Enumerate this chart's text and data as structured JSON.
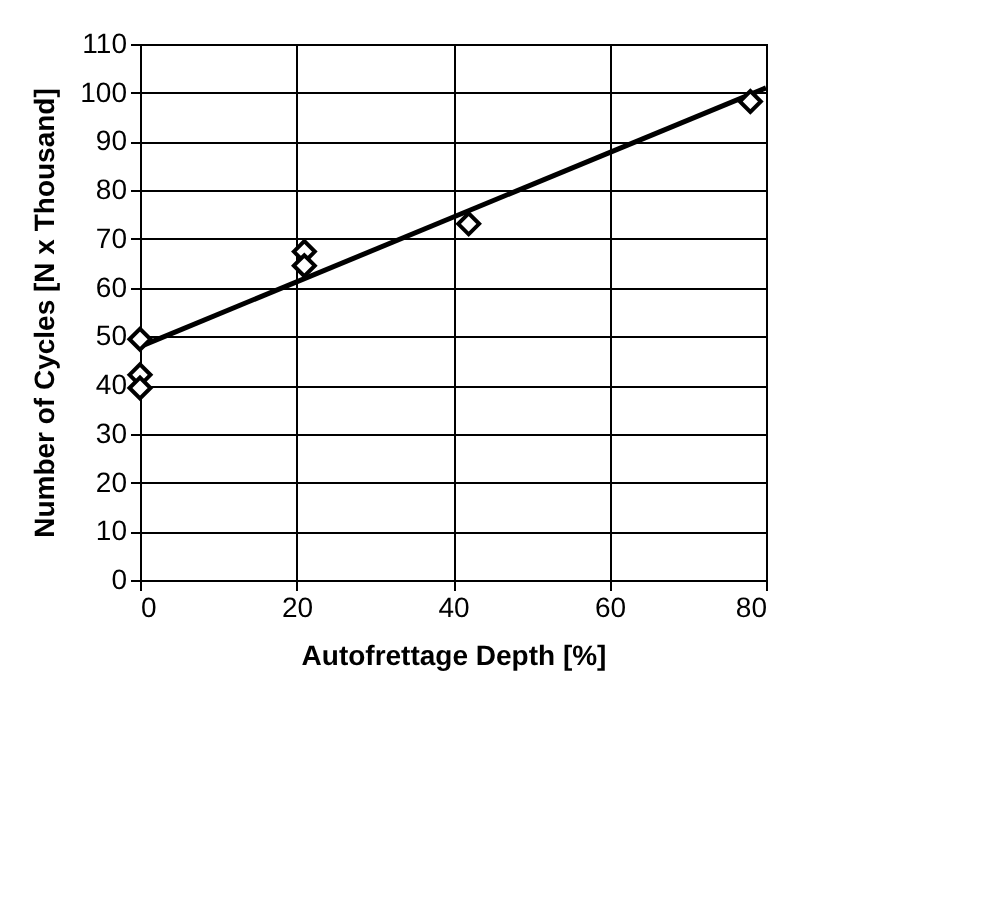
{
  "chart_data": {
    "type": "scatter",
    "xlabel": "Autofrettage Depth [%]",
    "ylabel": "Number of Cycles [N x Thousand]",
    "xlim": [
      0,
      80
    ],
    "xticks": [
      0,
      20,
      40,
      60,
      80
    ],
    "ylim": [
      0,
      110
    ],
    "yticks": [
      0,
      10,
      20,
      30,
      40,
      50,
      60,
      70,
      80,
      90,
      100,
      110
    ],
    "grid": true,
    "marker": "diamond",
    "series": [
      {
        "color": "#000000",
        "x": [
          0,
          0,
          0,
          21,
          21,
          42,
          78
        ],
        "values": [
          49.4,
          42.1,
          39.4,
          67.4,
          64.5,
          73.1,
          98.2
        ]
      },
      {
        "type": "line",
        "color": "#000000",
        "line_style": "solid",
        "marker": "none",
        "x": [
          0,
          80
        ],
        "values": [
          47.9,
          101
        ]
      }
    ]
  }
}
